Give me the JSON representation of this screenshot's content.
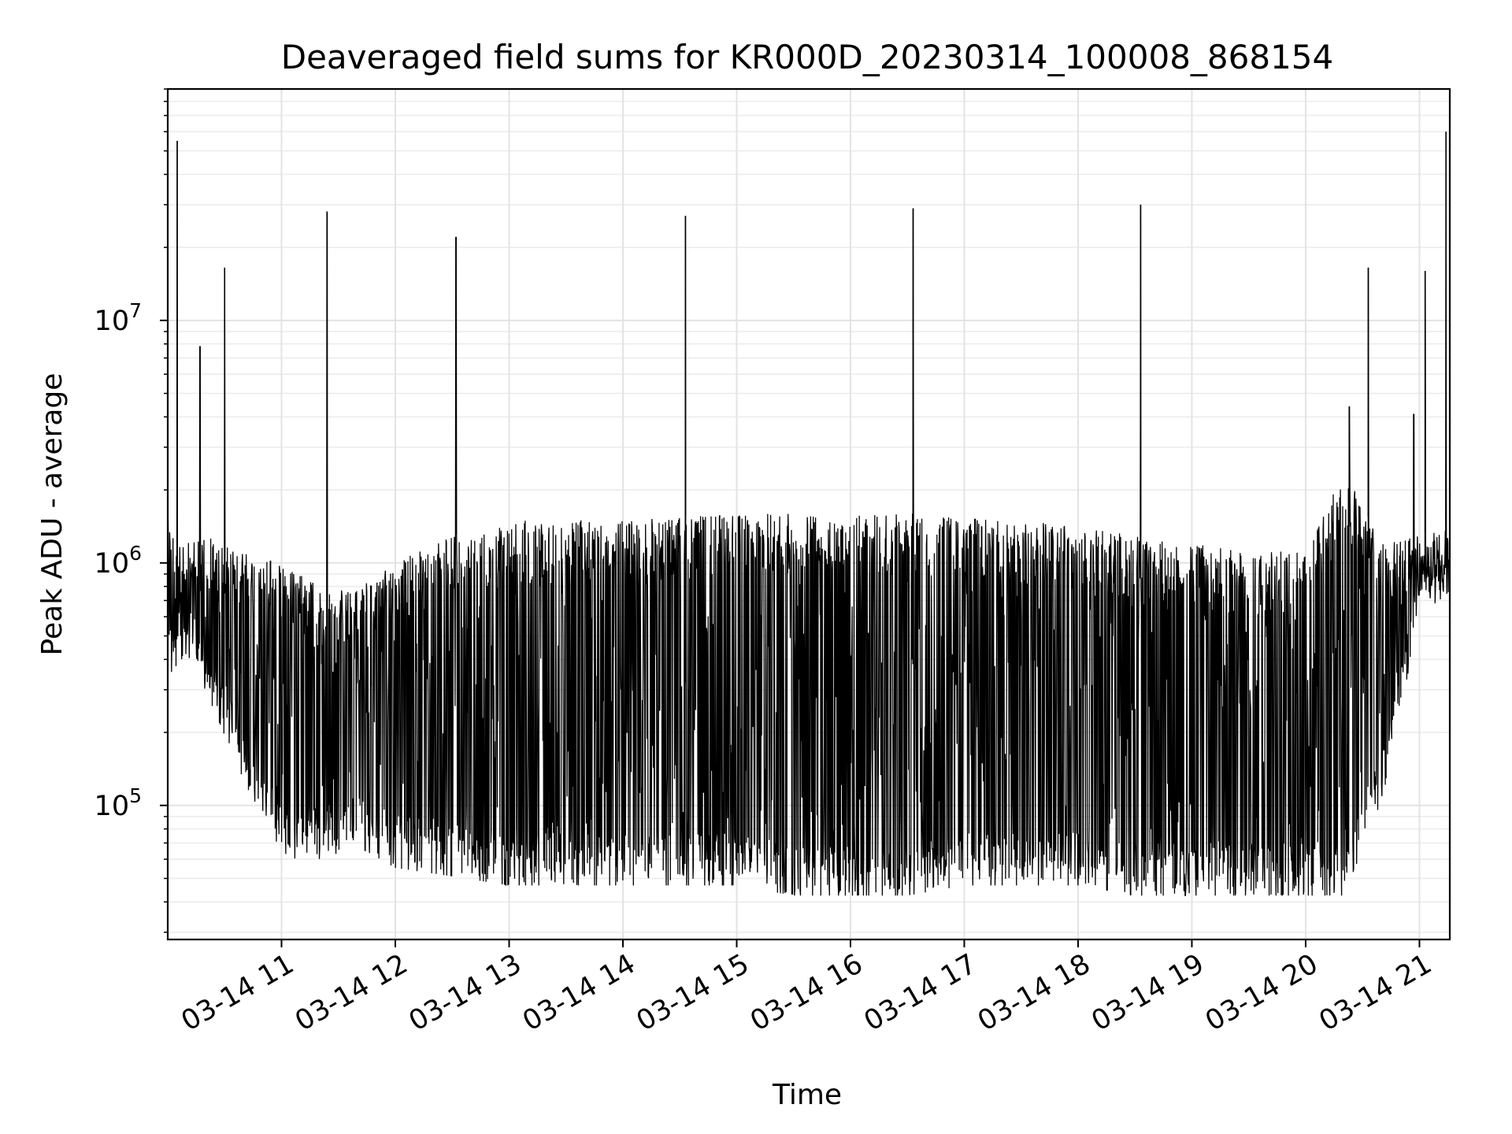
{
  "chart_data": {
    "type": "line",
    "title": "Deaveraged field sums for KR000D_20230314_100008_868154",
    "xlabel": "Time",
    "ylabel": "Peak ADU - average",
    "y_scale": "log",
    "x_range": [
      "03-14 10:00",
      "03-14 21:16"
    ],
    "ylim": [
      28000,
      90000000
    ],
    "grid": true,
    "line_color": "#000000",
    "x_ticks": [
      "03-14 11",
      "03-14 12",
      "03-14 13",
      "03-14 14",
      "03-14 15",
      "03-14 16",
      "03-14 17",
      "03-14 18",
      "03-14 19",
      "03-14 20",
      "03-14 21"
    ],
    "y_ticks": [
      {
        "value": 100000,
        "base": "10",
        "exp": "5"
      },
      {
        "value": 1000000,
        "base": "10",
        "exp": "6"
      },
      {
        "value": 10000000,
        "base": "10",
        "exp": "7"
      }
    ],
    "spikes": [
      {
        "x": "03-14 10:05",
        "y": 55000000
      },
      {
        "x": "03-14 10:17",
        "y": 7800000
      },
      {
        "x": "03-14 10:30",
        "y": 16500000
      },
      {
        "x": "03-14 11:24",
        "y": 28000000
      },
      {
        "x": "03-14 12:32",
        "y": 22000000
      },
      {
        "x": "03-14 14:33",
        "y": 27000000
      },
      {
        "x": "03-14 16:33",
        "y": 29000000
      },
      {
        "x": "03-14 18:33",
        "y": 30000000
      },
      {
        "x": "03-14 20:23",
        "y": 4400000
      },
      {
        "x": "03-14 20:33",
        "y": 16500000
      },
      {
        "x": "03-14 20:57",
        "y": 4100000
      },
      {
        "x": "03-14 21:03",
        "y": 16000000
      },
      {
        "x": "03-14 21:14",
        "y": 60000000
      }
    ],
    "series": [
      {
        "x": [
          "03-14 10:00",
          "03-14 10:10",
          "03-14 10:20",
          "03-14 10:40",
          "03-14 11:00",
          "03-14 11:20",
          "03-14 11:40",
          "03-14 12:00",
          "03-14 12:30",
          "03-14 13:00",
          "03-14 13:30",
          "03-14 14:00",
          "03-14 14:30",
          "03-14 15:00",
          "03-14 15:30",
          "03-14 16:00",
          "03-14 16:30",
          "03-14 17:00",
          "03-14 17:30",
          "03-14 18:00",
          "03-14 18:30",
          "03-14 19:00",
          "03-14 19:30",
          "03-14 20:00",
          "03-14 20:20",
          "03-14 20:40",
          "03-14 21:00",
          "03-14 21:16"
        ],
        "top": [
          1500000,
          1200000,
          1300000,
          1100000,
          1000000,
          800000,
          800000,
          1000000,
          1300000,
          1500000,
          1500000,
          1500000,
          1550000,
          1600000,
          1600000,
          1600000,
          1600000,
          1550000,
          1500000,
          1400000,
          1300000,
          1200000,
          1150000,
          1100000,
          2500000,
          1200000,
          1300000,
          1500000
        ],
        "bottom": [
          400000,
          500000,
          350000,
          150000,
          70000,
          70000,
          80000,
          65000,
          60000,
          55000,
          55000,
          55000,
          55000,
          55000,
          50000,
          50000,
          50000,
          55000,
          55000,
          55000,
          50000,
          50000,
          50000,
          50000,
          50000,
          120000,
          700000,
          900000
        ]
      }
    ]
  }
}
